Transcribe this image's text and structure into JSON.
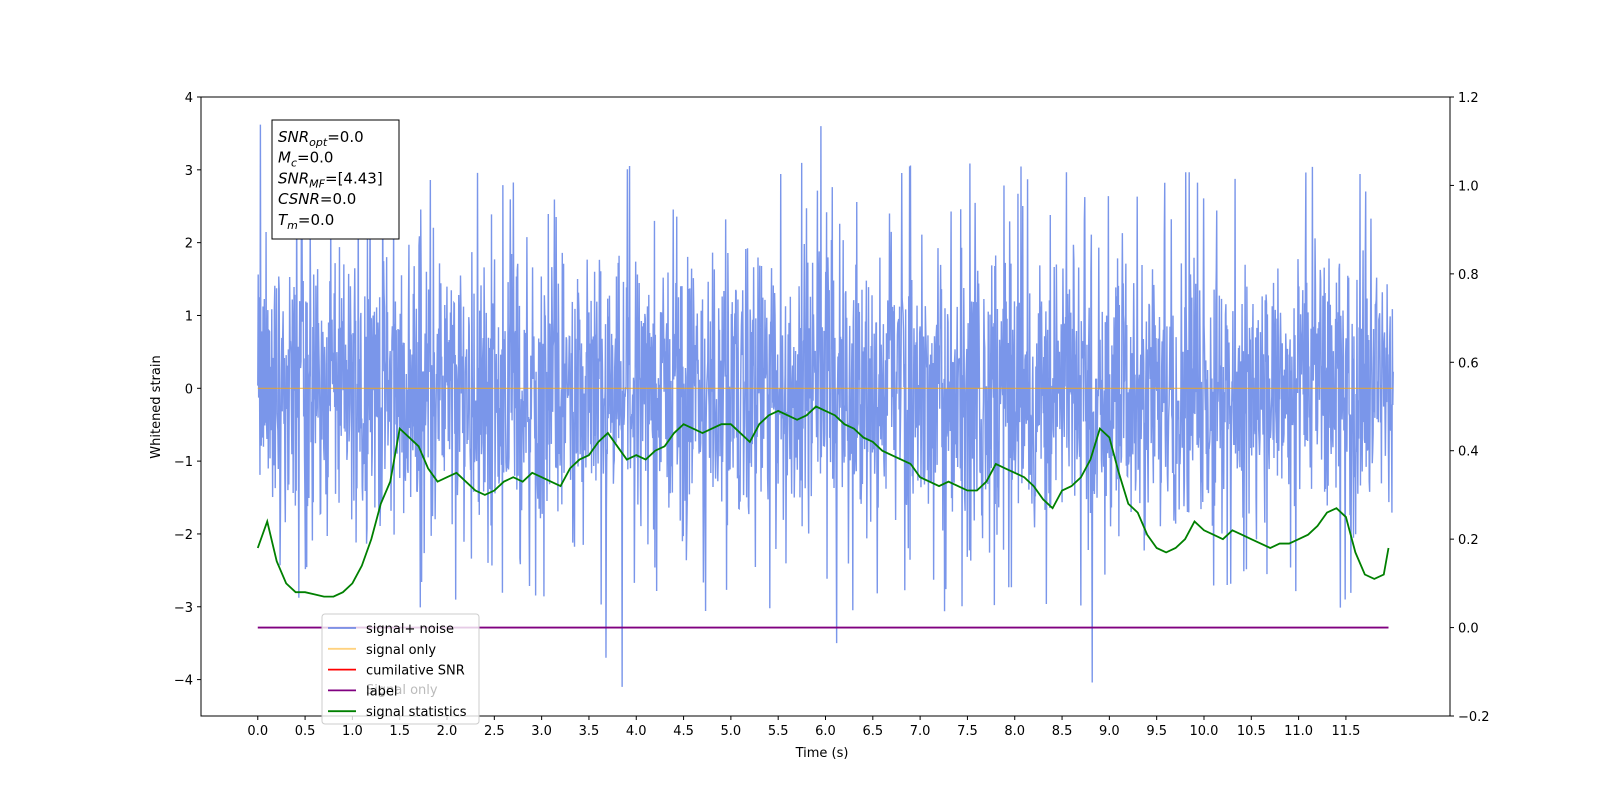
{
  "chart_data": {
    "type": "line",
    "xlabel": "Time (s)",
    "ylabel": "Whitened strain",
    "xlim": [
      -0.6,
      12.6
    ],
    "ylim": [
      -4.5,
      4.0
    ],
    "y2lim": [
      -0.2,
      1.2
    ],
    "x_ticks": [
      "0.0",
      "0.5",
      "1.0",
      "1.5",
      "2.0",
      "2.5",
      "3.0",
      "3.5",
      "4.0",
      "4.5",
      "5.0",
      "5.5",
      "6.0",
      "6.5",
      "7.0",
      "7.5",
      "8.0",
      "8.5",
      "9.0",
      "9.5",
      "10.0",
      "10.5",
      "11.0",
      "11.5"
    ],
    "y_ticks": [
      "4",
      "3",
      "2",
      "1",
      "0",
      "−1",
      "−2",
      "−3",
      "−4"
    ],
    "y2_ticks": [
      "1.2",
      "1.0",
      "0.8",
      "0.6",
      "0.4",
      "0.2",
      "0.0",
      "−0.2"
    ],
    "grid": false,
    "legend_position": "lower-left",
    "legend": [
      {
        "label": "signal+ noise",
        "color": "#4169e1"
      },
      {
        "label": "signal only",
        "color": "#ffa500"
      },
      {
        "label": "cumilative SNR",
        "color": "#ff0000"
      },
      {
        "label": "label",
        "color": "#800080"
      },
      {
        "label": "signal statistics",
        "color": "#008000"
      }
    ],
    "legend_overlap_text": "Signal only",
    "stats_box": [
      {
        "name": "SNR",
        "sub": "opt",
        "value": "=0.0"
      },
      {
        "name": "M",
        "sub": "c",
        "value": "=0.0"
      },
      {
        "name": "SNR",
        "sub": "MF",
        "value": "=[4.43]"
      },
      {
        "name": "CSNR",
        "sub": "",
        "value": "=0.0"
      },
      {
        "name": "T",
        "sub": "m",
        "value": "=0.0"
      }
    ],
    "series": [
      {
        "name": "signal+ noise",
        "axis": "left",
        "color": "#4169e1",
        "style": "noise",
        "x_range": [
          0.0,
          12.0
        ],
        "envelope_typical": [
          -2.4,
          2.4
        ],
        "max_value": 3.62,
        "min_value": -4.1
      },
      {
        "name": "signal only",
        "axis": "left",
        "color": "#ffa500",
        "x": [
          0.0,
          12.0
        ],
        "y": [
          0.0,
          0.0
        ]
      },
      {
        "name": "label",
        "axis": "right",
        "color": "#800080",
        "x": [
          0.0,
          11.95
        ],
        "y": [
          0.0,
          0.0
        ]
      },
      {
        "name": "signal statistics",
        "axis": "right",
        "color": "#008000",
        "x": [
          0.0,
          0.1,
          0.2,
          0.3,
          0.4,
          0.5,
          0.6,
          0.7,
          0.8,
          0.9,
          1.0,
          1.1,
          1.2,
          1.3,
          1.4,
          1.5,
          1.6,
          1.7,
          1.8,
          1.9,
          2.0,
          2.1,
          2.2,
          2.3,
          2.4,
          2.5,
          2.6,
          2.7,
          2.8,
          2.9,
          3.0,
          3.1,
          3.2,
          3.3,
          3.4,
          3.5,
          3.6,
          3.7,
          3.8,
          3.9,
          4.0,
          4.1,
          4.2,
          4.3,
          4.4,
          4.5,
          4.6,
          4.7,
          4.8,
          4.9,
          5.0,
          5.1,
          5.2,
          5.3,
          5.4,
          5.5,
          5.6,
          5.7,
          5.8,
          5.9,
          6.0,
          6.1,
          6.2,
          6.3,
          6.4,
          6.5,
          6.6,
          6.7,
          6.8,
          6.9,
          7.0,
          7.1,
          7.2,
          7.3,
          7.4,
          7.5,
          7.6,
          7.7,
          7.8,
          7.9,
          8.0,
          8.1,
          8.2,
          8.3,
          8.4,
          8.5,
          8.6,
          8.7,
          8.8,
          8.9,
          9.0,
          9.1,
          9.2,
          9.3,
          9.4,
          9.5,
          9.6,
          9.7,
          9.8,
          9.9,
          10.0,
          10.1,
          10.2,
          10.3,
          10.4,
          10.5,
          10.6,
          10.7,
          10.8,
          10.9,
          11.0,
          11.1,
          11.2,
          11.3,
          11.4,
          11.5,
          11.6,
          11.7,
          11.8,
          11.9,
          11.95
        ],
        "y": [
          0.18,
          0.24,
          0.15,
          0.1,
          0.08,
          0.08,
          0.075,
          0.07,
          0.07,
          0.08,
          0.1,
          0.14,
          0.2,
          0.28,
          0.33,
          0.45,
          0.43,
          0.41,
          0.36,
          0.33,
          0.34,
          0.35,
          0.33,
          0.31,
          0.3,
          0.31,
          0.33,
          0.34,
          0.33,
          0.35,
          0.34,
          0.33,
          0.32,
          0.36,
          0.38,
          0.39,
          0.42,
          0.44,
          0.41,
          0.38,
          0.39,
          0.38,
          0.4,
          0.41,
          0.44,
          0.46,
          0.45,
          0.44,
          0.45,
          0.46,
          0.46,
          0.44,
          0.42,
          0.46,
          0.48,
          0.49,
          0.48,
          0.47,
          0.48,
          0.5,
          0.49,
          0.48,
          0.46,
          0.45,
          0.43,
          0.42,
          0.4,
          0.39,
          0.38,
          0.37,
          0.34,
          0.33,
          0.32,
          0.33,
          0.32,
          0.31,
          0.31,
          0.33,
          0.37,
          0.36,
          0.35,
          0.34,
          0.32,
          0.29,
          0.27,
          0.31,
          0.32,
          0.34,
          0.38,
          0.45,
          0.43,
          0.35,
          0.28,
          0.26,
          0.21,
          0.18,
          0.17,
          0.18,
          0.2,
          0.24,
          0.22,
          0.21,
          0.2,
          0.22,
          0.21,
          0.2,
          0.19,
          0.18,
          0.19,
          0.19,
          0.2,
          0.21,
          0.23,
          0.26,
          0.27,
          0.25,
          0.17,
          0.12,
          0.11,
          0.12,
          0.18
        ]
      }
    ]
  }
}
